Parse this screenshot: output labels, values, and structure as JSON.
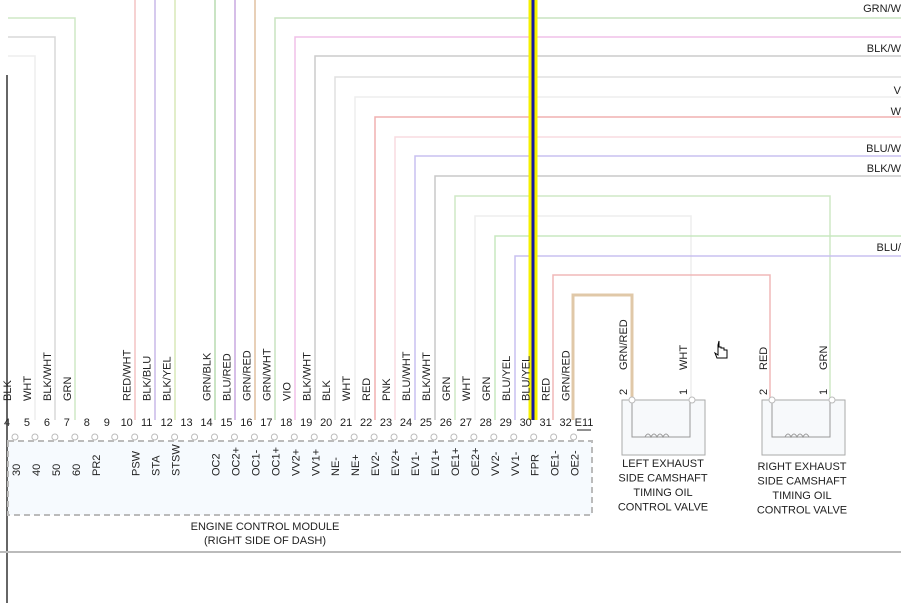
{
  "ecm": {
    "connector": "E11",
    "label_lines": [
      "ENGINE CONTROL MODULE",
      "(RIGHT SIDE OF DASH)"
    ],
    "pins": [
      {
        "number": "4",
        "wire": "BLK",
        "terminal": "30"
      },
      {
        "number": "5",
        "wire": "WHT",
        "terminal": "40"
      },
      {
        "number": "6",
        "wire": "BLK/WHT",
        "terminal": "50"
      },
      {
        "number": "7",
        "wire": "GRN",
        "terminal": "60"
      },
      {
        "number": "8",
        "terminal": "PR2"
      },
      {
        "number": "9"
      },
      {
        "number": "10",
        "wire": "RED/WHT",
        "terminal": "PSW"
      },
      {
        "number": "11",
        "wire": "BLK/BLU",
        "terminal": "STA"
      },
      {
        "number": "12",
        "wire": "BLK/YEL",
        "terminal": "STSW"
      },
      {
        "number": "13"
      },
      {
        "number": "14",
        "wire": "GRN/BLK",
        "terminal": "OC2"
      },
      {
        "number": "15",
        "wire": "BLU/RED",
        "terminal": "OC2+"
      },
      {
        "number": "16",
        "wire": "GRN/RED",
        "terminal": "OC1-"
      },
      {
        "number": "17",
        "wire": "GRN/WHT",
        "terminal": "OC1+"
      },
      {
        "number": "18",
        "wire": "VIO",
        "terminal": "VV2+"
      },
      {
        "number": "19",
        "wire": "BLK/WHT",
        "terminal": "VV1+"
      },
      {
        "number": "20",
        "wire": "BLK",
        "terminal": "NE-"
      },
      {
        "number": "21",
        "wire": "WHT",
        "terminal": "NE+"
      },
      {
        "number": "22",
        "wire": "RED",
        "terminal": "EV2-"
      },
      {
        "number": "23",
        "wire": "PNK",
        "terminal": "EV2+"
      },
      {
        "number": "24",
        "wire": "BLU/WHT",
        "terminal": "EV1-"
      },
      {
        "number": "25",
        "wire": "BLK/WHT",
        "terminal": "EV1+"
      },
      {
        "number": "26",
        "wire": "GRN",
        "terminal": "OE1+"
      },
      {
        "number": "27",
        "wire": "WHT",
        "terminal": "OE2+"
      },
      {
        "number": "28",
        "wire": "GRN",
        "terminal": "VV2-"
      },
      {
        "number": "29",
        "wire": "BLU/YEL",
        "terminal": "VV1-"
      },
      {
        "number": "30",
        "wire": "BLU/YEL",
        "terminal": "FPR"
      },
      {
        "number": "31",
        "wire": "RED",
        "terminal": "OE1-"
      },
      {
        "number": "32",
        "wire": "GRN/RED",
        "terminal": "OE2-"
      }
    ]
  },
  "harness_labels": [
    "GRN/W",
    "BLK/W",
    "V",
    "W",
    "BLU/W",
    "BLK/W",
    "BLU/"
  ],
  "valves": [
    {
      "pins": [
        {
          "number": "2",
          "wire": "GRN/RED"
        },
        {
          "number": "1",
          "wire": "WHT"
        }
      ],
      "label_lines": [
        "LEFT EXHAUST",
        "SIDE CAMSHAFT",
        "TIMING OIL",
        "CONTROL VALVE"
      ]
    },
    {
      "pins": [
        {
          "number": "2",
          "wire": "RED"
        },
        {
          "number": "1",
          "wire": "GRN"
        }
      ],
      "label_lines": [
        "RIGHT EXHAUST",
        "SIDE CAMSHAFT",
        "TIMING OIL",
        "CONTROL VALVE"
      ]
    }
  ]
}
